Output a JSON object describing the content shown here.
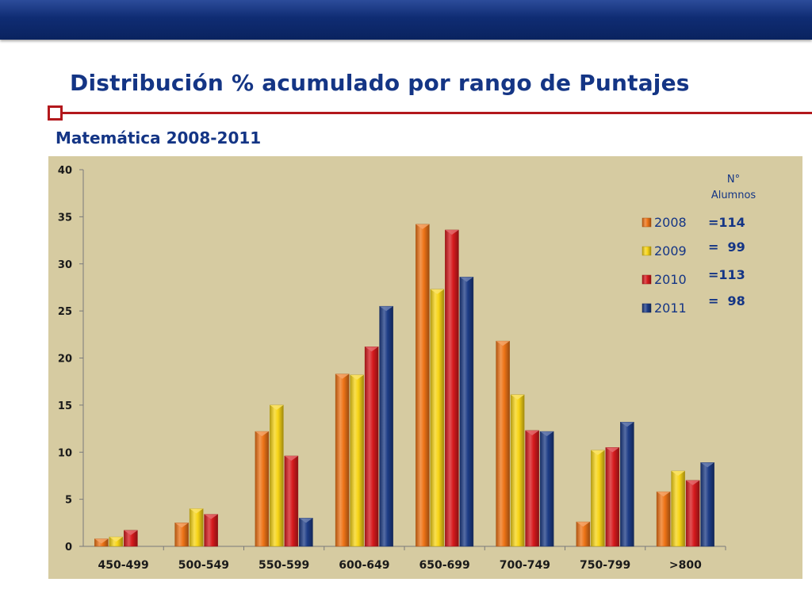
{
  "slide": {
    "title": "Distribución % acumulado por rango de Puntajes",
    "subtitle": "Matemática 2008-2011"
  },
  "colors": {
    "header_band": "#0f2c73",
    "title_text": "#143585",
    "accent_rule": "#b3181c",
    "chart_background": "#d6cba1"
  },
  "chart_data": {
    "type": "bar",
    "title": "",
    "xlabel": "",
    "ylabel": "",
    "ylim": [
      0,
      40
    ],
    "yticks": [
      0,
      5,
      10,
      15,
      20,
      25,
      30,
      35,
      40
    ],
    "grid": false,
    "legend_position": "right",
    "categories": [
      "450-499",
      "500-549",
      "550-599",
      "600-649",
      "650-699",
      "700-749",
      "750-799",
      ">800"
    ],
    "series": [
      {
        "name": "2008",
        "color": "#ee7417",
        "values": [
          0.8,
          2.5,
          12.2,
          18.3,
          34.2,
          21.8,
          2.6,
          5.8
        ]
      },
      {
        "name": "2009",
        "color": "#f7d416",
        "values": [
          1.0,
          4.0,
          15.0,
          18.2,
          27.3,
          16.1,
          10.2,
          8.0
        ]
      },
      {
        "name": "2010",
        "color": "#d61a1d",
        "values": [
          1.7,
          3.4,
          9.6,
          21.2,
          33.6,
          12.3,
          10.5,
          7.0
        ]
      },
      {
        "name": "2011",
        "color": "#1d3c86",
        "values": [
          null,
          null,
          3.0,
          25.5,
          28.6,
          12.2,
          13.2,
          8.9
        ]
      }
    ],
    "annotation": {
      "header_lines": [
        "N°",
        "Alumnos"
      ],
      "values": [
        "=114",
        "=  99",
        "=113",
        "=  98"
      ]
    }
  }
}
